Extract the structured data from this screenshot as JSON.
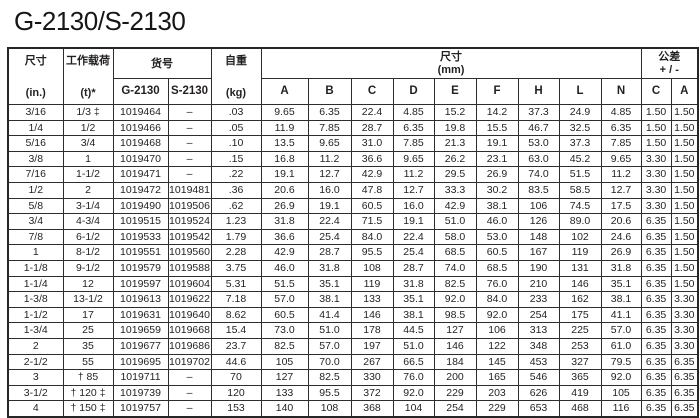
{
  "title": "G-2130/S-2130",
  "table": {
    "header": {
      "size_in": {
        "line1": "尺寸",
        "line2": "(in.)"
      },
      "wll": {
        "line1": "工作载荷",
        "line2": "(t)*"
      },
      "part_no_label": "货号",
      "g2130_label": "G-2130",
      "s2130_label": "S-2130",
      "weight": {
        "line1": "自重",
        "line2": "(kg)"
      },
      "dims_mm": {
        "line1": "尺寸",
        "line2": "(mm)"
      },
      "dim_cols": [
        "A",
        "B",
        "C",
        "D",
        "E",
        "F",
        "H",
        "L",
        "N"
      ],
      "tolerance": {
        "line1": "公差",
        "line2": "+ / -"
      },
      "tol_cols": [
        "C",
        "A"
      ]
    },
    "rows": [
      [
        "3/16",
        "1/3 ‡",
        "1019464",
        "–",
        ".03",
        "9.65",
        "6.35",
        "22.4",
        "4.85",
        "15.2",
        "14.2",
        "37.3",
        "24.9",
        "4.85",
        "1.50",
        "1.50"
      ],
      [
        "1/4",
        "1/2",
        "1019466",
        "–",
        ".05",
        "11.9",
        "7.85",
        "28.7",
        "6.35",
        "19.8",
        "15.5",
        "46.7",
        "32.5",
        "6.35",
        "1.50",
        "1.50"
      ],
      [
        "5/16",
        "3/4",
        "1019468",
        "–",
        ".10",
        "13.5",
        "9.65",
        "31.0",
        "7.85",
        "21.3",
        "19.1",
        "53.0",
        "37.3",
        "7.85",
        "1.50",
        "1.50"
      ],
      [
        "3/8",
        "1",
        "1019470",
        "–",
        ".15",
        "16.8",
        "11.2",
        "36.6",
        "9.65",
        "26.2",
        "23.1",
        "63.0",
        "45.2",
        "9.65",
        "3.30",
        "1.50"
      ],
      [
        "7/16",
        "1-1/2",
        "1019471",
        "–",
        ".22",
        "19.1",
        "12.7",
        "42.9",
        "11.2",
        "29.5",
        "26.9",
        "74.0",
        "51.5",
        "11.2",
        "3.30",
        "1.50"
      ],
      [
        "1/2",
        "2",
        "1019472",
        "1019481",
        ".36",
        "20.6",
        "16.0",
        "47.8",
        "12.7",
        "33.3",
        "30.2",
        "83.5",
        "58.5",
        "12.7",
        "3.30",
        "1.50"
      ],
      [
        "5/8",
        "3-1/4",
        "1019490",
        "1019506",
        ".62",
        "26.9",
        "19.1",
        "60.5",
        "16.0",
        "42.9",
        "38.1",
        "106",
        "74.5",
        "17.5",
        "3.30",
        "1.50"
      ],
      [
        "3/4",
        "4-3/4",
        "1019515",
        "1019524",
        "1.23",
        "31.8",
        "22.4",
        "71.5",
        "19.1",
        "51.0",
        "46.0",
        "126",
        "89.0",
        "20.6",
        "6.35",
        "1.50"
      ],
      [
        "7/8",
        "6-1/2",
        "1019533",
        "1019542",
        "1.79",
        "36.6",
        "25.4",
        "84.0",
        "22.4",
        "58.0",
        "53.0",
        "148",
        "102",
        "24.6",
        "6.35",
        "1.50"
      ],
      [
        "1",
        "8-1/2",
        "1019551",
        "1019560",
        "2.28",
        "42.9",
        "28.7",
        "95.5",
        "25.4",
        "68.5",
        "60.5",
        "167",
        "119",
        "26.9",
        "6.35",
        "1.50"
      ],
      [
        "1-1/8",
        "9-1/2",
        "1019579",
        "1019588",
        "3.75",
        "46.0",
        "31.8",
        "108",
        "28.7",
        "74.0",
        "68.5",
        "190",
        "131",
        "31.8",
        "6.35",
        "1.50"
      ],
      [
        "1-1/4",
        "12",
        "1019597",
        "1019604",
        "5.31",
        "51.5",
        "35.1",
        "119",
        "31.8",
        "82.5",
        "76.0",
        "210",
        "146",
        "35.1",
        "6.35",
        "1.50"
      ],
      [
        "1-3/8",
        "13-1/2",
        "1019613",
        "1019622",
        "7.18",
        "57.0",
        "38.1",
        "133",
        "35.1",
        "92.0",
        "84.0",
        "233",
        "162",
        "38.1",
        "6.35",
        "3.30"
      ],
      [
        "1-1/2",
        "17",
        "1019631",
        "1019640",
        "8.62",
        "60.5",
        "41.4",
        "146",
        "38.1",
        "98.5",
        "92.0",
        "254",
        "175",
        "41.1",
        "6.35",
        "3.30"
      ],
      [
        "1-3/4",
        "25",
        "1019659",
        "1019668",
        "15.4",
        "73.0",
        "51.0",
        "178",
        "44.5",
        "127",
        "106",
        "313",
        "225",
        "57.0",
        "6.35",
        "3.30"
      ],
      [
        "2",
        "35",
        "1019677",
        "1019686",
        "23.7",
        "82.5",
        "57.0",
        "197",
        "51.0",
        "146",
        "122",
        "348",
        "253",
        "61.0",
        "6.35",
        "3.30"
      ],
      [
        "2-1/2",
        "55",
        "1019695",
        "1019702",
        "44.6",
        "105",
        "70.0",
        "267",
        "66.5",
        "184",
        "145",
        "453",
        "327",
        "79.5",
        "6.35",
        "6.35"
      ],
      [
        "3",
        "† 85",
        "1019711",
        "–",
        "70",
        "127",
        "82.5",
        "330",
        "76.0",
        "200",
        "165",
        "546",
        "365",
        "92.0",
        "6.35",
        "6.35"
      ],
      [
        "3-1/2",
        "† 120 ‡",
        "1019739",
        "–",
        "120",
        "133",
        "95.5",
        "372",
        "92.0",
        "229",
        "203",
        "626",
        "419",
        "105",
        "6.35",
        "6.35"
      ],
      [
        "4",
        "† 150 ‡",
        "1019757",
        "–",
        "153",
        "140",
        "108",
        "368",
        "104",
        "254",
        "229",
        "653",
        "468",
        "116",
        "6.35",
        "6.35"
      ]
    ]
  }
}
